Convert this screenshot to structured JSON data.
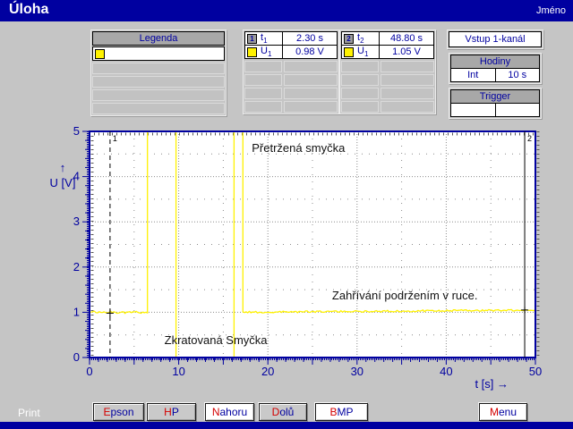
{
  "window": {
    "title": "Úloha",
    "user_label": "Jméno"
  },
  "legend": {
    "title": "Legenda"
  },
  "cursor_tables": [
    {
      "rows": [
        {
          "marker": "1",
          "label": "t",
          "sub": "1",
          "value": "2.30 s"
        },
        {
          "marker": "yellow",
          "label": "U",
          "sub": "1",
          "value": "0.98 V"
        }
      ]
    },
    {
      "rows": [
        {
          "marker": "2",
          "label": "t",
          "sub": "2",
          "value": "48.80 s"
        },
        {
          "marker": "yellow",
          "label": "U",
          "sub": "1",
          "value": "1.05 V"
        }
      ]
    }
  ],
  "input_box": {
    "label": "Vstup 1-kanál"
  },
  "clock_panel": {
    "title": "Hodiny",
    "cells": [
      "Int",
      "10 s"
    ]
  },
  "trigger_panel": {
    "title": "Trigger",
    "cells": [
      "",
      ""
    ]
  },
  "chart_data": {
    "type": "line",
    "title": "",
    "xlabel": "t [s] →",
    "ylabel": "U [V]",
    "ylabel_arrow": "↑",
    "xlim": [
      0,
      50
    ],
    "ylim": [
      0,
      5
    ],
    "xticks": [
      0,
      10,
      20,
      30,
      40,
      50
    ],
    "yticks": [
      0,
      1,
      2,
      3,
      4,
      5
    ],
    "grid": true,
    "background": "#ffffff",
    "axis_color": "#0000a0",
    "grid_color": "#8c8c8c",
    "series": [
      {
        "name": "U1",
        "color": "#fff200",
        "segments": [
          {
            "t0": 0,
            "t1": 6.5,
            "u0": 1.0,
            "u1": 1.0,
            "noise": 0.025
          },
          {
            "t0": 6.5,
            "t1": 9.7,
            "u0": 5.0,
            "u1": 5.0,
            "noise": 0
          },
          {
            "t0": 9.7,
            "t1": 16.2,
            "u0": 0.0,
            "u1": 0.0,
            "noise": 0
          },
          {
            "t0": 16.2,
            "t1": 17.2,
            "u0": 5.0,
            "u1": 5.0,
            "noise": 0
          },
          {
            "t0": 17.2,
            "t1": 50.0,
            "u0": 1.0,
            "u1": 1.05,
            "noise": 0.02
          }
        ]
      }
    ],
    "cursors": [
      {
        "id": "1",
        "t": 2.3,
        "u": 0.98,
        "style": "dashed"
      },
      {
        "id": "2",
        "t": 48.8,
        "u": 1.05,
        "style": "solid"
      }
    ],
    "annotations": [
      {
        "text": "Přetržená smyčka",
        "t": 18.2,
        "u": 4.55
      },
      {
        "text": "Zkratovaná Smyčka",
        "t": 8.4,
        "u": 0.3
      },
      {
        "text": "Zahřívání podržením v ruce.",
        "t": 27.2,
        "u": 1.28
      }
    ]
  },
  "toolbar": {
    "print_label": "Print",
    "buttons": [
      {
        "label": "Epson"
      },
      {
        "label": "HP"
      },
      {
        "label": "Nahoru"
      },
      {
        "label": "Dolů"
      },
      {
        "label": "BMP"
      },
      {
        "label": "Menu"
      }
    ]
  }
}
